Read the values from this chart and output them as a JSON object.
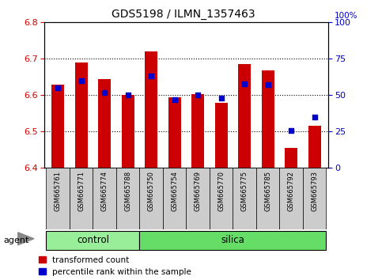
{
  "title": "GDS5198 / ILMN_1357463",
  "samples": [
    "GSM665761",
    "GSM665771",
    "GSM665774",
    "GSM665788",
    "GSM665750",
    "GSM665754",
    "GSM665769",
    "GSM665770",
    "GSM665775",
    "GSM665785",
    "GSM665792",
    "GSM665793"
  ],
  "groups": [
    "control",
    "control",
    "control",
    "control",
    "silica",
    "silica",
    "silica",
    "silica",
    "silica",
    "silica",
    "silica",
    "silica"
  ],
  "transformed_count": [
    6.63,
    6.69,
    6.645,
    6.6,
    6.72,
    6.595,
    6.603,
    6.58,
    6.685,
    6.668,
    6.455,
    6.515
  ],
  "percentile_rank": [
    55,
    60,
    52,
    50,
    63,
    47,
    50,
    48,
    58,
    57,
    26,
    35
  ],
  "ylim_left": [
    6.4,
    6.8
  ],
  "ylim_right": [
    0,
    100
  ],
  "yticks_left": [
    6.4,
    6.5,
    6.6,
    6.7,
    6.8
  ],
  "yticks_right": [
    0,
    25,
    50,
    75,
    100
  ],
  "bar_color": "#cc0000",
  "dot_color": "#0000cc",
  "bar_bottom": 6.4,
  "bg_xtick": "#cccccc",
  "bg_control": "#99ee99",
  "bg_silica": "#66dd66",
  "agent_label": "agent",
  "control_label": "control",
  "silica_label": "silica",
  "legend_bar": "transformed count",
  "legend_dot": "percentile rank within the sample",
  "ylabel_left_color": "#cc0000",
  "ylabel_right_color": "#0000cc",
  "right_label": "100%",
  "gridline_values": [
    6.5,
    6.6,
    6.7
  ]
}
